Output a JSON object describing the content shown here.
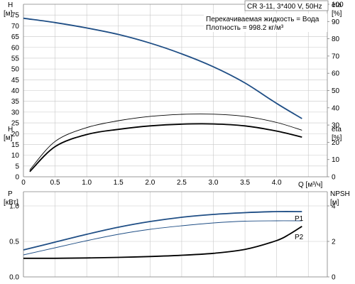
{
  "colors": {
    "blue": "#1f4e85",
    "black": "#000000",
    "grid": "#c8c8c8"
  },
  "chart_data": [
    {
      "type": "line",
      "title": "CR 3-11, 3*400 V, 50Hz",
      "notes": [
        "Перекачиваемая жидкость = Вода",
        "Плотность = 998.2 кг/м³"
      ],
      "xlabel": "Q [м³/ч]",
      "xlim": [
        0,
        4.8
      ],
      "x_ticks": [
        "0",
        "0.5",
        "1.0",
        "1.5",
        "2.0",
        "2.5",
        "3.0",
        "3.5",
        "4.0"
      ],
      "left_axis": {
        "label_top": "H",
        "label_bottom": "[м]",
        "ylim": [
          0,
          80
        ],
        "ticks": [
          "0",
          "5",
          "10",
          "15",
          "20",
          "25",
          "30",
          "35",
          "40",
          "45",
          "50",
          "55",
          "60",
          "65",
          "70",
          "75"
        ]
      },
      "right_axis": {
        "label_top": "eta",
        "label_bottom": "[%]",
        "ylim": [
          0,
          100
        ],
        "ticks": [
          "0",
          "10",
          "20",
          "30",
          "40",
          "50",
          "60",
          "70",
          "80",
          "90",
          "100"
        ]
      },
      "grid": true,
      "series": [
        {
          "axis": "left",
          "color": "#1f4e85",
          "width": 1.8,
          "x": [
            0,
            0.5,
            1.0,
            1.5,
            2.0,
            2.5,
            3.0,
            3.5,
            4.0,
            4.4
          ],
          "values": [
            73.5,
            71.5,
            69,
            66,
            62,
            57,
            51,
            43.5,
            34,
            27
          ]
        },
        {
          "axis": "right",
          "color": "#000000",
          "width": 0.9,
          "x": [
            0.1,
            0.5,
            1.0,
            1.5,
            2.0,
            2.5,
            3.0,
            3.5,
            4.0,
            4.4
          ],
          "values": [
            4,
            20.5,
            28.5,
            32.5,
            35,
            36.2,
            36.3,
            35,
            31.5,
            27
          ]
        },
        {
          "axis": "right",
          "color": "#000000",
          "width": 1.8,
          "x": [
            0.1,
            0.5,
            1.0,
            1.5,
            2.0,
            2.5,
            3.0,
            3.5,
            4.0,
            4.4
          ],
          "values": [
            3,
            17.5,
            24.5,
            27.5,
            29.5,
            30.5,
            30.6,
            29.5,
            26.5,
            23
          ]
        }
      ]
    },
    {
      "type": "line",
      "xlim": [
        0,
        4.8
      ],
      "left_axis": {
        "label_top": "P",
        "label_bottom": "[кВт]",
        "ylim": [
          0,
          1.2
        ],
        "ticks": [
          "0.0",
          "0.5",
          "1.0"
        ]
      },
      "right_axis": {
        "label_top": "NPSH",
        "label_bottom": "[м]",
        "ylim": [
          0,
          4.8
        ],
        "ticks": [
          "0",
          "2",
          "4"
        ]
      },
      "grid": true,
      "series": [
        {
          "name": "P1",
          "axis": "left",
          "color": "#1f4e85",
          "width": 1.8,
          "x": [
            0,
            0.5,
            1.0,
            1.5,
            2.0,
            2.5,
            3.0,
            3.5,
            4.0,
            4.4
          ],
          "values": [
            0.38,
            0.49,
            0.6,
            0.7,
            0.78,
            0.84,
            0.88,
            0.905,
            0.92,
            0.92
          ]
        },
        {
          "name": "P2",
          "axis": "left",
          "color": "#1f4e85",
          "width": 0.9,
          "x": [
            0,
            0.5,
            1.0,
            1.5,
            2.0,
            2.5,
            3.0,
            3.5,
            4.0,
            4.4
          ],
          "values": [
            0.31,
            0.41,
            0.51,
            0.6,
            0.67,
            0.72,
            0.76,
            0.785,
            0.79,
            0.79
          ]
        },
        {
          "axis": "right",
          "color": "#000000",
          "width": 1.8,
          "x": [
            0,
            0.5,
            1.0,
            1.5,
            2.0,
            2.5,
            3.0,
            3.5,
            4.0,
            4.2,
            4.4
          ],
          "values": [
            1.05,
            1.05,
            1.07,
            1.1,
            1.15,
            1.22,
            1.33,
            1.55,
            2.05,
            2.4,
            2.85
          ]
        }
      ]
    }
  ]
}
